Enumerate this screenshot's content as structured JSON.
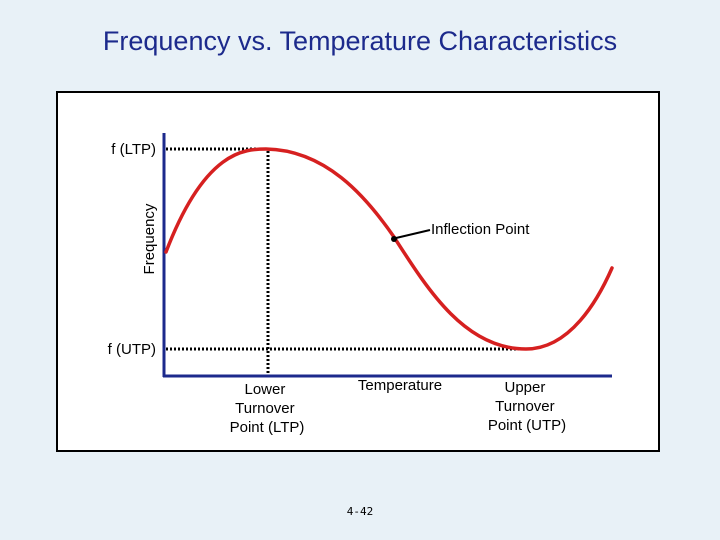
{
  "title": "Frequency vs. Temperature Characteristics",
  "labels": {
    "f_ltp": "f (LTP)",
    "f_utp": "f (UTP)",
    "y_axis": "Frequency",
    "x_axis": "Temperature",
    "inflection": "Inflection Point",
    "lower_turnover": [
      "Lower",
      "Turnover",
      "Point (LTP)"
    ],
    "upper_turnover": [
      "Upper",
      "Turnover",
      "Point (UTP)"
    ]
  },
  "page_number": "4-42",
  "colors": {
    "title": "#1c2a8c",
    "curve": "#d62020",
    "axes": "#1c2a8c",
    "guides": "#000000",
    "background": "#e8f1f7"
  }
}
